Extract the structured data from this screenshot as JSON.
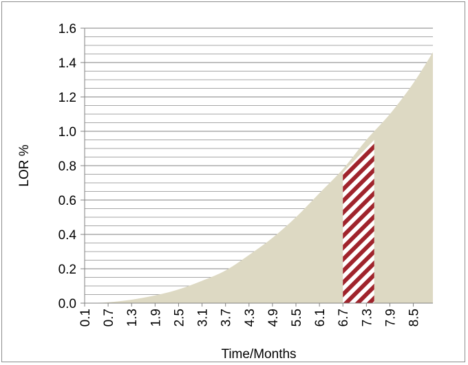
{
  "chart_data": {
    "type": "area",
    "title": "",
    "xlabel": "Time/Months",
    "ylabel": "LOR %",
    "ylim": [
      0,
      1.6
    ],
    "yticks": [
      "0.0",
      "0.2",
      "0.4",
      "0.6",
      "0.8",
      "1.0",
      "1.2",
      "1.4",
      "1.6"
    ],
    "xticks": [
      "0.1",
      "0.7",
      "1.3",
      "1.9",
      "2.5",
      "3.1",
      "3.7",
      "4.3",
      "4.9",
      "5.5",
      "6.1",
      "6.7",
      "7.3",
      "7.9",
      "8.5"
    ],
    "xlim": [
      0.1,
      9.0
    ],
    "grid": "horizontal",
    "series": [
      {
        "color": "#ddd9c3",
        "x": [
          0.1,
          0.7,
          1.3,
          1.9,
          2.5,
          3.1,
          3.7,
          4.3,
          4.9,
          5.5,
          6.1,
          6.7,
          7.3,
          7.9,
          8.5,
          9.0
        ],
        "values": [
          0.0,
          0.005,
          0.02,
          0.045,
          0.08,
          0.13,
          0.19,
          0.28,
          0.38,
          0.5,
          0.64,
          0.78,
          0.95,
          1.1,
          1.28,
          1.46
        ]
      }
    ],
    "highlight": {
      "pattern": "diagonal-stripes",
      "color": "#a0242c",
      "x_start": 6.7,
      "x_end": 7.5,
      "y_start": 0.76,
      "y_end": 0.95
    }
  }
}
